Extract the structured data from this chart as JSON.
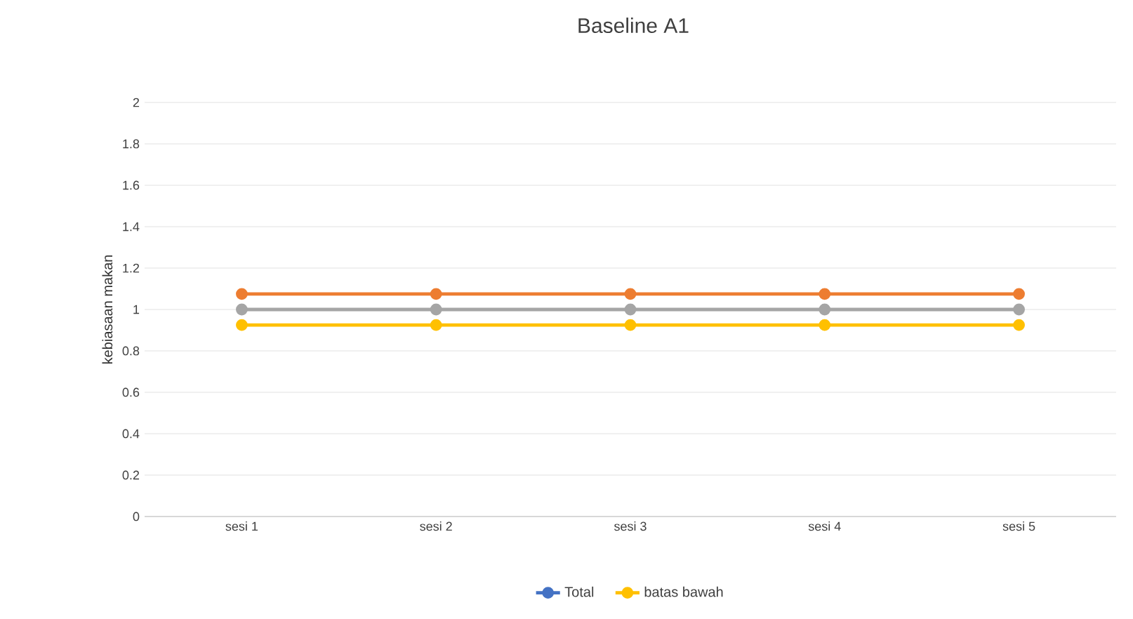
{
  "chart_data": {
    "type": "line",
    "title": "Baseline A1",
    "ylabel": "kebiasaan makan",
    "categories": [
      "sesi 1",
      "sesi 2",
      "sesi 3",
      "sesi 4",
      "sesi 5"
    ],
    "series": [
      {
        "name": "Total",
        "color": "#4472c4",
        "values": [
          null,
          null,
          null,
          null,
          null
        ]
      },
      {
        "color": "#ed7d31",
        "values": [
          1.075,
          1.075,
          1.075,
          1.075,
          1.075
        ]
      },
      {
        "color": "#a5a5a5",
        "values": [
          1,
          1,
          1,
          1,
          1
        ]
      },
      {
        "name": "batas bawah",
        "color": "#ffc000",
        "values": [
          0.925,
          0.925,
          0.925,
          0.925,
          0.925
        ]
      }
    ],
    "ylim": [
      0,
      2
    ],
    "yticks": [
      0,
      0.2,
      0.4,
      0.6,
      0.8,
      1,
      1.2,
      1.4,
      1.6,
      1.8,
      2
    ],
    "grid": "y",
    "legend": "bottom",
    "marker": "circle",
    "line_style": "solid"
  }
}
